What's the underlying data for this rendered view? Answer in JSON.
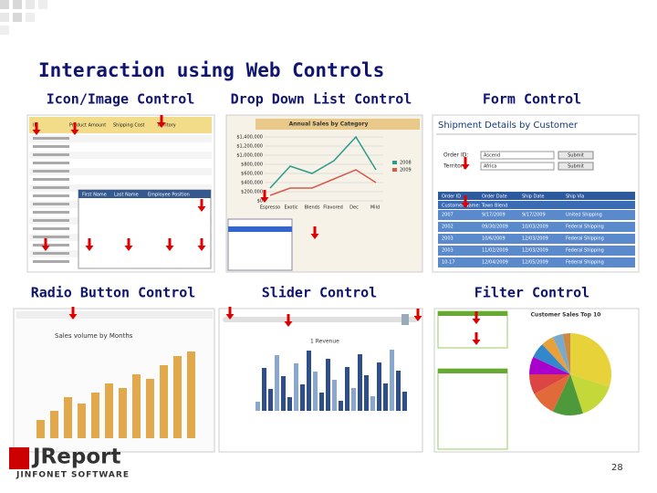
{
  "title": "Interaction using Web Controls",
  "sections": [
    {
      "label": "Icon/Image Control"
    },
    {
      "label": "Drop Down List Control"
    },
    {
      "label": "Form Control"
    },
    {
      "label": "Radio Button Control"
    },
    {
      "label": "Slider Control"
    },
    {
      "label": "Filter Control"
    }
  ],
  "icon_panel": {
    "headers": [
      "ID",
      "Product Amount",
      "Shipping Cost",
      "Territory"
    ],
    "popup_headers": [
      "First Name",
      "Last Name",
      "Employee Position"
    ]
  },
  "dropdown_panel": {
    "chart_title": "Annual Sales by Category",
    "yticks": [
      "$1,400,000",
      "$1,200,000",
      "$1,000,000",
      "$800,000",
      "$600,000",
      "$400,000",
      "$200,000",
      "$0"
    ],
    "categories": [
      "Espresso",
      "Exotic",
      "Blends",
      "Flavored",
      "Dec",
      "Mild"
    ],
    "legend": [
      "2008",
      "2009"
    ]
  },
  "form_panel": {
    "title": "Shipment Details by Customer",
    "fields": [
      {
        "label": "Order ID:",
        "value": "Ascend",
        "button": "Submit"
      },
      {
        "label": "Territory:",
        "value": "Africa",
        "button": "Submit"
      }
    ],
    "headers": [
      "Order ID",
      "Order Date",
      "Ship Date",
      "Ship Via"
    ],
    "customer": "Customer Name: Town Blend",
    "rows": [
      [
        "2007",
        "9/17/2009",
        "9/17/2009",
        "United Shipping"
      ],
      [
        "2002",
        "09/30/2009",
        "10/03/2009",
        "Federal Shipping"
      ],
      [
        "2003",
        "10/6/2009",
        "12/03/2009",
        "Federal Shipping"
      ],
      [
        "2003",
        "11/02/2009",
        "12/03/2009",
        "Federal Shipping"
      ],
      [
        "10-17",
        "12/04/2009",
        "12/05/2009",
        "Federal Shipping"
      ]
    ]
  },
  "radio_panel": {
    "chart_title": "Sales volume by Months"
  },
  "slider_panel": {
    "chart_title": "1 Revenue"
  },
  "filter_panel": {
    "chart_title": "Customer Sales Top 10"
  },
  "logo": {
    "name": "JReport",
    "tagline": "JINFONET SOFTWARE"
  },
  "page_number": "28"
}
